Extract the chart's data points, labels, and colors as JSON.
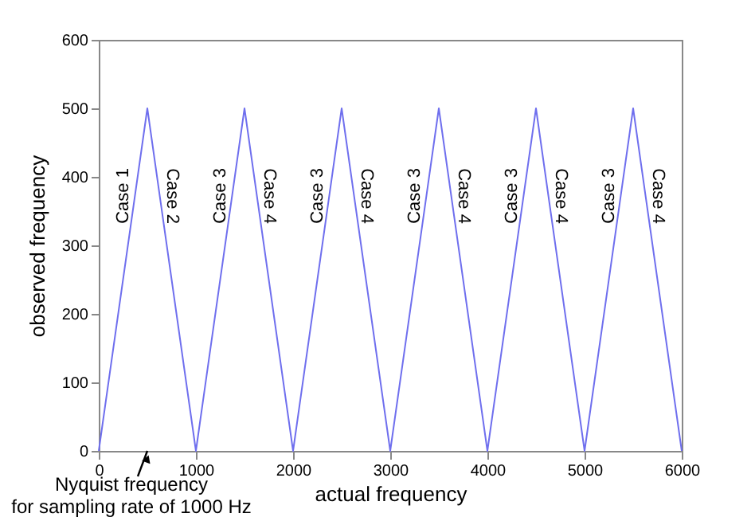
{
  "chart_data": {
    "type": "line",
    "xlabel": "actual frequency",
    "ylabel": "observed frequency",
    "x": [
      0,
      500,
      1000,
      1500,
      2000,
      2500,
      3000,
      3500,
      4000,
      4500,
      5000,
      5500,
      6000
    ],
    "series": [
      {
        "color": "#6f6fee",
        "values": [
          0,
          500,
          0,
          500,
          0,
          500,
          0,
          500,
          0,
          500,
          0,
          500,
          0
        ]
      }
    ],
    "xlim": [
      0,
      6000
    ],
    "ylim": [
      0,
      600
    ],
    "xticks": [
      0,
      1000,
      2000,
      3000,
      4000,
      5000,
      6000
    ],
    "yticks": [
      0,
      100,
      200,
      300,
      400,
      500,
      600
    ],
    "grid": false,
    "marker": "none",
    "line_style": "solid",
    "annotations": [
      "Case 1",
      "Case 2",
      "Case 3",
      "Case 4",
      "Case 3",
      "Case 4",
      "Case 3",
      "Case 4",
      "Case 3",
      "Case 4",
      "Case 3",
      "Case 4",
      "Nyquist frequency\nfor sampling rate of 1000 Hz"
    ]
  }
}
